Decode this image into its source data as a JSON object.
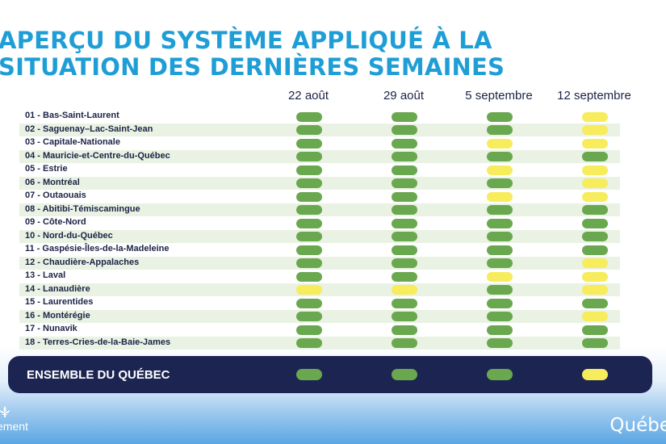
{
  "title": {
    "line1": "APERÇU DU SYSTÈME APPLIQUÉ À LA",
    "line2": "SITUATION DES DERNIÈRES SEMAINES"
  },
  "columns": [
    "22 août",
    "29 août",
    "5 septembre",
    "12 septembre"
  ],
  "status_colors": {
    "green": "#6aa84f",
    "yellow": "#f7ec5c"
  },
  "regions": [
    {
      "label": "01 - Bas-Saint-Laurent",
      "status": [
        "green",
        "green",
        "green",
        "yellow"
      ]
    },
    {
      "label": "02 - Saguenay–Lac-Saint-Jean",
      "status": [
        "green",
        "green",
        "green",
        "yellow"
      ]
    },
    {
      "label": "03 - Capitale-Nationale",
      "status": [
        "green",
        "green",
        "yellow",
        "yellow"
      ]
    },
    {
      "label": "04 - Mauricie-et-Centre-du-Québec",
      "status": [
        "green",
        "green",
        "green",
        "green"
      ]
    },
    {
      "label": "05 - Estrie",
      "status": [
        "green",
        "green",
        "yellow",
        "yellow"
      ]
    },
    {
      "label": "06 - Montréal",
      "status": [
        "green",
        "green",
        "green",
        "yellow"
      ]
    },
    {
      "label": "07 - Outaouais",
      "status": [
        "green",
        "green",
        "yellow",
        "yellow"
      ]
    },
    {
      "label": "08 - Abitibi-Témiscamingue",
      "status": [
        "green",
        "green",
        "green",
        "green"
      ]
    },
    {
      "label": "09 - Côte-Nord",
      "status": [
        "green",
        "green",
        "green",
        "green"
      ]
    },
    {
      "label": "10 - Nord-du-Québec",
      "status": [
        "green",
        "green",
        "green",
        "green"
      ]
    },
    {
      "label": "11 - Gaspésie-Îles-de-la-Madeleine",
      "status": [
        "green",
        "green",
        "green",
        "green"
      ]
    },
    {
      "label": "12 - Chaudière-Appalaches",
      "status": [
        "green",
        "green",
        "green",
        "yellow"
      ]
    },
    {
      "label": "13 - Laval",
      "status": [
        "green",
        "green",
        "yellow",
        "yellow"
      ]
    },
    {
      "label": "14 - Lanaudière",
      "status": [
        "yellow",
        "yellow",
        "green",
        "yellow"
      ]
    },
    {
      "label": "15 - Laurentides",
      "status": [
        "green",
        "green",
        "green",
        "green"
      ]
    },
    {
      "label": "16 - Montérégie",
      "status": [
        "green",
        "green",
        "green",
        "yellow"
      ]
    },
    {
      "label": "17 - Nunavik",
      "status": [
        "green",
        "green",
        "green",
        "green"
      ]
    },
    {
      "label": "18 - Terres-Cries-de-la-Baie-James",
      "status": [
        "green",
        "green",
        "green",
        "green"
      ]
    }
  ],
  "total": {
    "label": "ENSEMBLE DU QUÉBEC",
    "status": [
      "green",
      "green",
      "green",
      "yellow"
    ]
  },
  "footer": {
    "left_text": "ement",
    "left_icon": "fleur-de-lis-icon",
    "right_text": "Québe"
  }
}
